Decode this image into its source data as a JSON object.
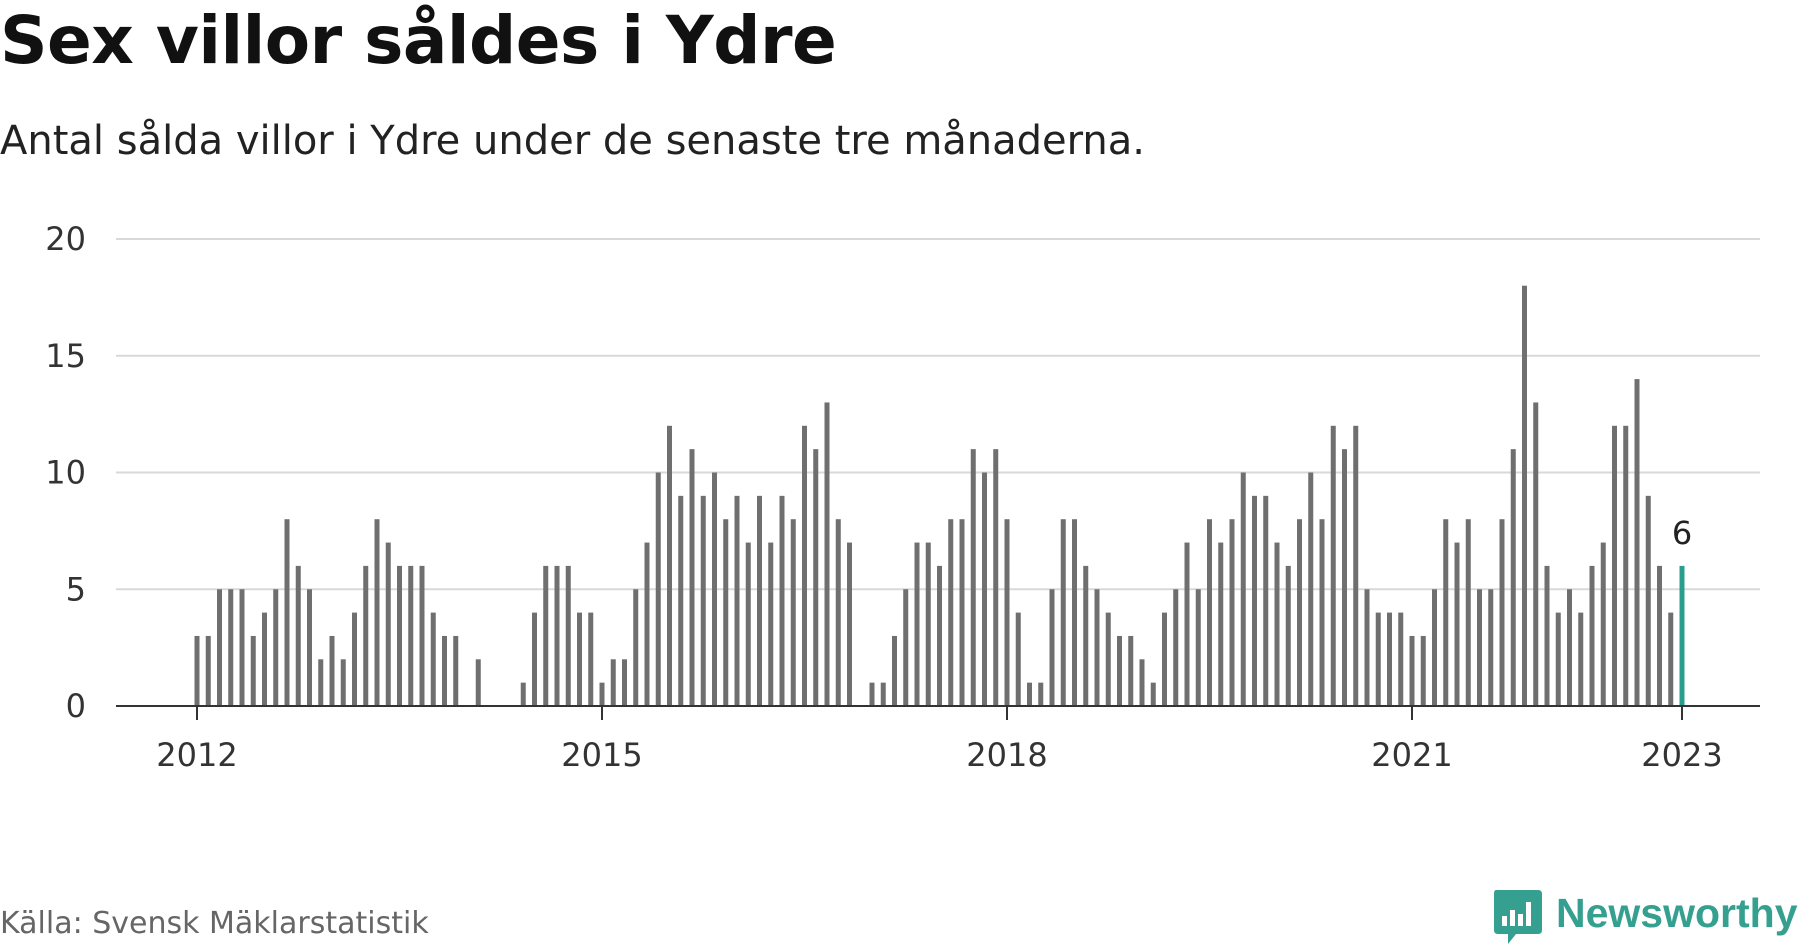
{
  "header": {
    "title": "Sex villor såldes i Ydre",
    "subtitle": "Antal sålda villor i Ydre under de senaste tre månaderna."
  },
  "footer": {
    "source": "Källa: Svensk Mäklarstatistik",
    "brand": "Newsworthy",
    "brand_icon": "bar-chart-speech-icon"
  },
  "colors": {
    "bar": "#6f6f6f",
    "highlight": "#2a9d8f",
    "grid": "#d9d9d9",
    "axis": "#333333"
  },
  "chart_data": {
    "type": "bar",
    "x_start": "2012-01",
    "x_end": "2023-01",
    "x_ticks": [
      "2012",
      "2015",
      "2018",
      "2021",
      "2023"
    ],
    "ylim": [
      0,
      20
    ],
    "y_ticks": [
      0,
      5,
      10,
      15,
      20
    ],
    "grid": true,
    "legend": "none",
    "highlight_index": 132,
    "highlight_label": "6",
    "values": [
      3,
      3,
      5,
      5,
      5,
      3,
      4,
      5,
      8,
      6,
      5,
      2,
      3,
      2,
      4,
      6,
      8,
      7,
      6,
      6,
      6,
      4,
      3,
      3,
      0,
      2,
      0,
      0,
      0,
      1,
      4,
      6,
      6,
      6,
      4,
      4,
      1,
      2,
      2,
      5,
      7,
      10,
      12,
      9,
      11,
      9,
      10,
      8,
      9,
      7,
      9,
      7,
      9,
      8,
      12,
      11,
      13,
      8,
      7,
      0,
      1,
      1,
      3,
      5,
      7,
      7,
      6,
      8,
      8,
      11,
      10,
      11,
      8,
      4,
      1,
      1,
      5,
      8,
      8,
      6,
      5,
      4,
      3,
      3,
      2,
      1,
      4,
      5,
      7,
      5,
      8,
      7,
      8,
      10,
      9,
      9,
      7,
      6,
      8,
      10,
      8,
      12,
      11,
      12,
      5,
      4,
      4,
      4,
      3,
      3,
      5,
      8,
      7,
      8,
      5,
      5,
      8,
      11,
      18,
      13,
      6,
      4,
      5,
      4,
      6,
      7,
      12,
      12,
      14,
      9,
      6,
      4,
      6
    ]
  }
}
